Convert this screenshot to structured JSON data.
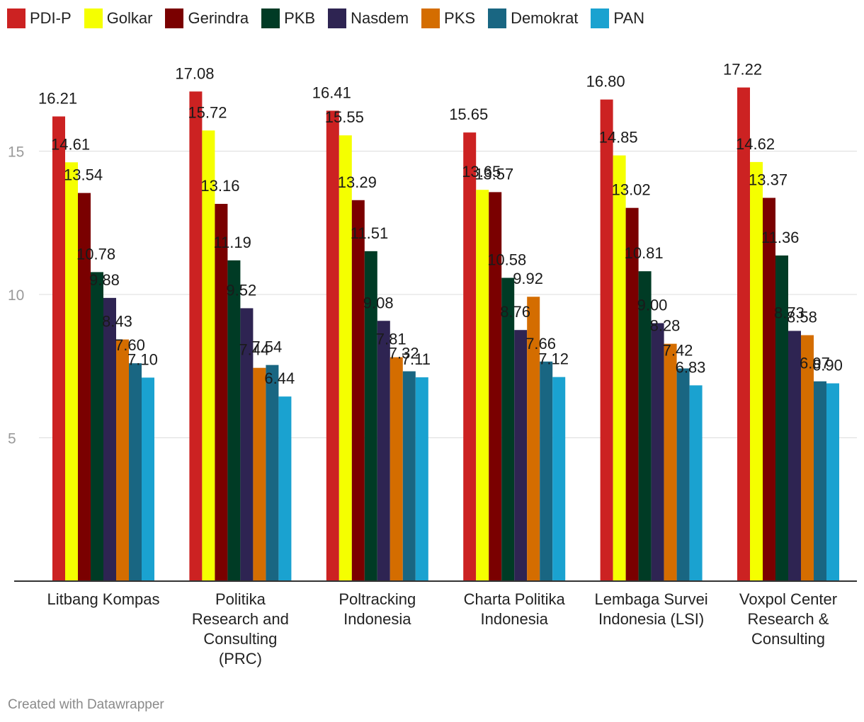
{
  "chart_data": {
    "type": "bar",
    "title": "",
    "xlabel": "",
    "ylabel": "",
    "ylim": [
      0,
      18
    ],
    "yticks": [
      5,
      10,
      15
    ],
    "categories": [
      [
        "Litbang Kompas"
      ],
      [
        "Politika",
        "Research and",
        "Consulting",
        "(PRC)"
      ],
      [
        "Poltracking",
        "Indonesia"
      ],
      [
        "Charta Politika",
        "Indonesia"
      ],
      [
        "Lembaga Survei",
        "Indonesia (LSI)"
      ],
      [
        "Voxpol Center",
        "Research &",
        "Consulting"
      ]
    ],
    "series": [
      {
        "name": "PDI-P",
        "color": "#cc2222",
        "values": [
          16.21,
          17.08,
          16.41,
          15.65,
          16.8,
          17.22
        ]
      },
      {
        "name": "Golkar",
        "color": "#f5ff00",
        "values": [
          14.61,
          15.72,
          15.55,
          13.65,
          14.85,
          14.62
        ]
      },
      {
        "name": "Gerindra",
        "color": "#7a0000",
        "values": [
          13.54,
          13.16,
          13.29,
          13.57,
          13.02,
          13.37
        ]
      },
      {
        "name": "PKB",
        "color": "#003b25",
        "values": [
          10.78,
          11.19,
          11.51,
          10.58,
          10.81,
          11.36
        ]
      },
      {
        "name": "Nasdem",
        "color": "#2e2452",
        "values": [
          9.88,
          9.52,
          9.08,
          8.76,
          9.0,
          8.73
        ]
      },
      {
        "name": "PKS",
        "color": "#d46d00",
        "values": [
          8.43,
          7.44,
          7.81,
          9.92,
          8.28,
          8.58
        ]
      },
      {
        "name": "Demokrat",
        "color": "#196682",
        "values": [
          7.6,
          7.54,
          7.32,
          7.66,
          7.42,
          6.97
        ]
      },
      {
        "name": "PAN",
        "color": "#1aa2d0",
        "values": [
          7.1,
          6.44,
          7.11,
          7.12,
          6.83,
          6.9
        ]
      }
    ],
    "value_labels": [
      [
        "16.21",
        "17.08",
        "16.41",
        "15.65",
        "16.80",
        "17.22"
      ],
      [
        "14.61",
        "15.72",
        "15.55",
        "13.65",
        "14.85",
        "14.62"
      ],
      [
        "13.54",
        "13.16",
        "13.29",
        "13.57",
        "13.02",
        "13.37"
      ],
      [
        "10.78",
        "11.19",
        "11.51",
        "10.58",
        "10.81",
        "11.36"
      ],
      [
        "9.88",
        "9.52",
        "9.08",
        "8.76",
        "9.00",
        "8.73"
      ],
      [
        "8.43",
        "7.44",
        "7.81",
        "9.92",
        "8.28",
        "8.58"
      ],
      [
        "7.60",
        "7.54",
        "7.32",
        "7.66",
        "7.42",
        "6.97"
      ],
      [
        "7.10",
        "6.44",
        "7.11",
        "7.12",
        "6.83",
        "6.90"
      ]
    ],
    "legend": "top-left",
    "grid": true
  },
  "credit": "Created with Datawrapper"
}
